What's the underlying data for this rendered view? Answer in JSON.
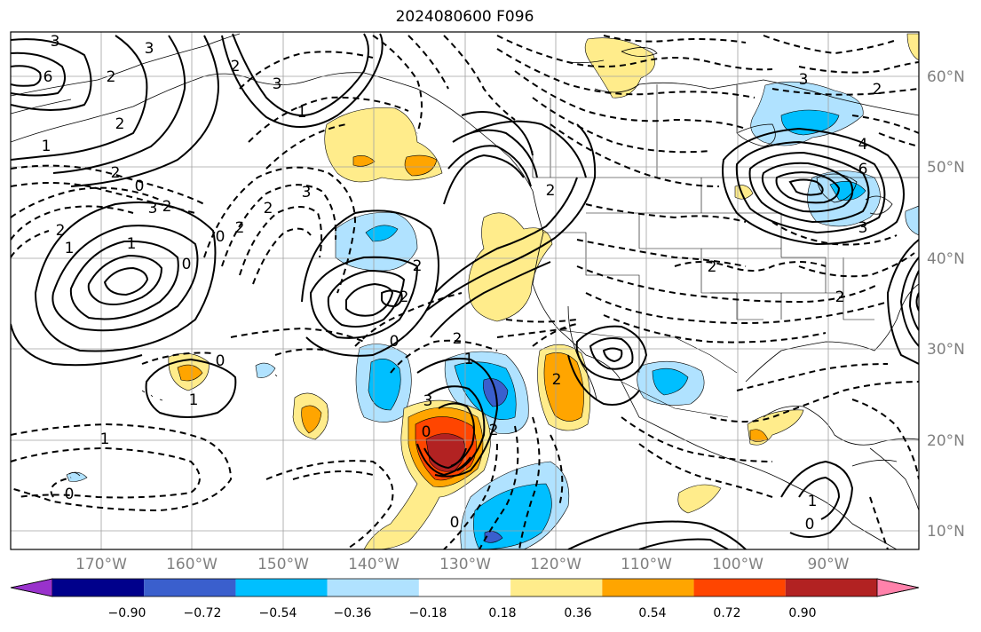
{
  "title": "2024080600 F096",
  "lat_labels": [
    "60°N",
    "50°N",
    "40°N",
    "30°N",
    "20°N",
    "10°N"
  ],
  "lon_labels": [
    "170°W",
    "160°W",
    "150°W",
    "140°W",
    "130°W",
    "120°W",
    "110°W",
    "100°W",
    "90°W"
  ],
  "colorbar": {
    "ticks": [
      "−0.90",
      "−0.72",
      "−0.54",
      "−0.36",
      "−0.18",
      "0.18",
      "0.36",
      "0.54",
      "0.72",
      "0.90"
    ],
    "colors": [
      "#9932cc",
      "#00008b",
      "#3a5fcd",
      "#00bfff",
      "#b0e2ff",
      "#ffffff",
      "#ffec8b",
      "#ffa500",
      "#ff4500",
      "#b22222",
      "#ff82ab"
    ]
  },
  "contour_labels": {
    "c1": "3",
    "c2": "6",
    "c3": "2",
    "c4": "1",
    "c5": "2",
    "c6": "3",
    "c7": "1",
    "c8": "2",
    "c9": "3",
    "c10": "2",
    "c11": "0",
    "c12": "1",
    "c13": "2",
    "c14": "1",
    "c15": "3",
    "c16": "2",
    "c17": "2",
    "c18": "0",
    "c19": "3",
    "c20": "2",
    "c21": "2",
    "c22": "2",
    "c23": "0",
    "c24": "2",
    "c25": "0",
    "c26": "1",
    "c27": "2",
    "c28": "0",
    "c29": "1",
    "c30": "0",
    "c31": "3",
    "c32": "2",
    "c33": "0",
    "c34": "3",
    "c35": "4",
    "c36": "6",
    "c37": "3",
    "c38": "2",
    "c39": "2",
    "c40": "2",
    "c41": "1",
    "c42": "0",
    "c43": "0",
    "c44": "2",
    "c45": "1"
  }
}
